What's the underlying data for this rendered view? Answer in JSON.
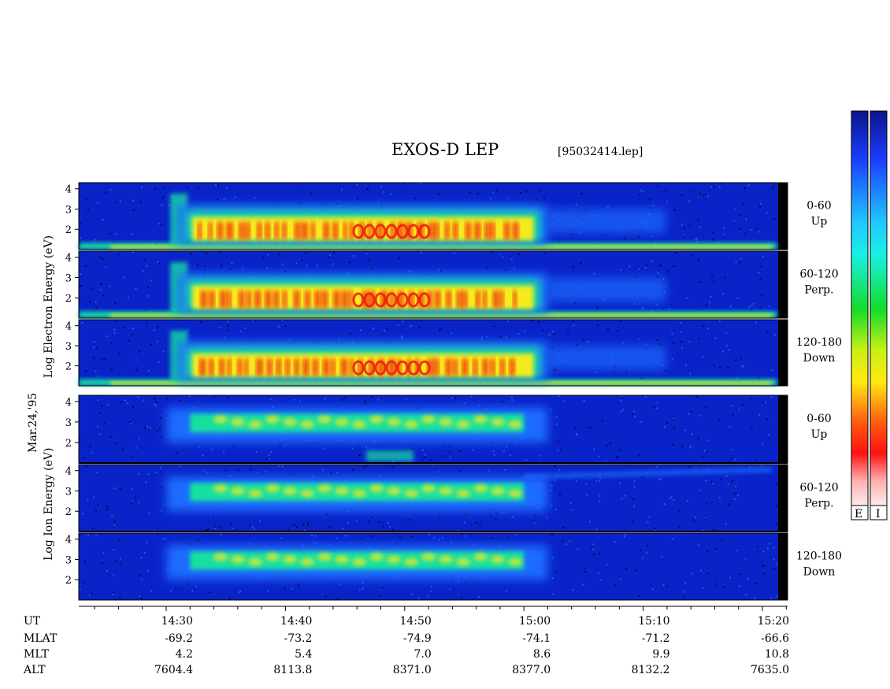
{
  "title": "EXOS-D LEP",
  "file_label": "[95032414.lep]",
  "date_label": "Mar.24,'95",
  "electron_ylabel": "Log  Electron  Energy (eV)",
  "ion_ylabel": "Log   Ion  Energy (eV)",
  "colorbar_labels": [
    "E",
    "I"
  ],
  "chart_data": {
    "type": "heatmap",
    "x_unit": "UT",
    "x_ticks": [
      "14:30",
      "14:40",
      "14:50",
      "15:00",
      "15:10",
      "15:20"
    ],
    "y_ticks": [
      "4",
      "3",
      "2"
    ],
    "ion_y_ticks": [
      "4",
      "3",
      "2"
    ],
    "panels": [
      {
        "species": "Electron",
        "pitch_angle": "0-60",
        "direction": "Up"
      },
      {
        "species": "Electron",
        "pitch_angle": "60-120",
        "direction": "Perp."
      },
      {
        "species": "Electron",
        "pitch_angle": "120-180",
        "direction": "Down"
      },
      {
        "species": "Ion",
        "pitch_angle": "0-60",
        "direction": "Up"
      },
      {
        "species": "Ion",
        "pitch_angle": "60-120",
        "direction": "Perp."
      },
      {
        "species": "Ion",
        "pitch_angle": "120-180",
        "direction": "Down"
      }
    ],
    "ephemeris": {
      "rows": [
        "UT",
        "MLAT",
        "MLT",
        "ALT"
      ],
      "MLAT": [
        "-69.2",
        "-73.2",
        "-74.9",
        "-74.1",
        "-71.2",
        "-66.6"
      ],
      "MLT": [
        "4.2",
        "5.4",
        "7.0",
        "8.6",
        "9.9",
        "10.8"
      ],
      "ALT": [
        "7604.4",
        "8113.8",
        "8371.0",
        "8377.0",
        "8132.2",
        "7635.0"
      ]
    },
    "electron_band_start": "14:31",
    "electron_band_end": "15:02",
    "ion_band_start": "14:32",
    "ion_band_end": "15:00",
    "colors": {
      "background": "#0a23c8",
      "low": "#1e6cff",
      "mid": "#16e0a0",
      "high": "#f7ea1c",
      "peak": "#f02010"
    }
  }
}
